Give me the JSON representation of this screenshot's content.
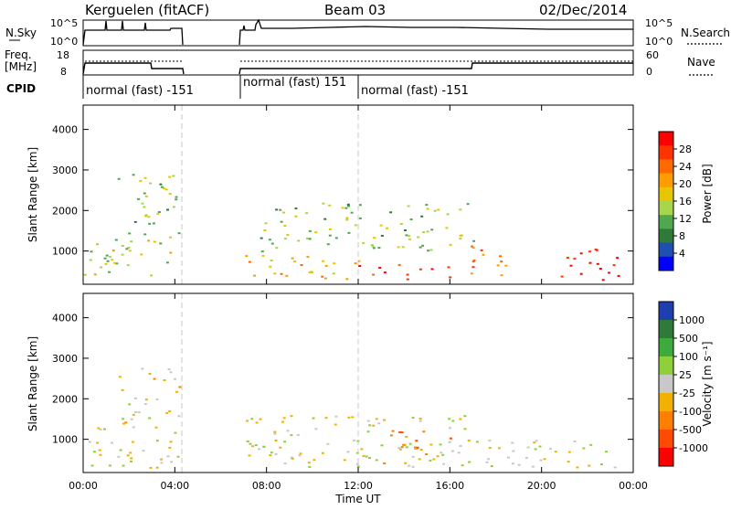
{
  "header": {
    "station": "Kerguelen (fitACF)",
    "beam": "Beam 03",
    "date": "02/Dec/2014"
  },
  "strip": {
    "nsky_label": "N.Sky",
    "nsky_ticks": [
      "10^5",
      "10^0"
    ],
    "nsearch_label": "N.Search",
    "nsearch_ticks": [
      "10^5",
      "10^0"
    ],
    "freq_label_1": "Freq.",
    "freq_label_2": "[MHz]",
    "freq_ticks": [
      "18",
      "8"
    ],
    "nave_label": "Nave",
    "nave_ticks": [
      "60",
      "0"
    ],
    "cpid_label": "CPID",
    "cpid_modes": [
      {
        "text": "normal (fast) -151",
        "start": "00:00",
        "end": "04:20"
      },
      {
        "text": "normal (fast) 151",
        "start": "07:00",
        "end": "12:00"
      },
      {
        "text": "normal (fast) -151",
        "start": "12:00",
        "end": "24:00"
      }
    ]
  },
  "axes": {
    "ylabel": "Slant Range [km]",
    "xlabel": "Time UT",
    "yticks": [
      "1000",
      "2000",
      "3000",
      "4000"
    ],
    "xticks": [
      "00:00",
      "04:00",
      "08:00",
      "12:00",
      "16:00",
      "20:00",
      "00:00"
    ]
  },
  "power_bar": {
    "label": "Power [dB]",
    "ticks": [
      "28",
      "24",
      "20",
      "16",
      "12",
      "8",
      "4"
    ],
    "colors": [
      "#ff0000",
      "#ff3300",
      "#ff6a00",
      "#ff9c00",
      "#e7c600",
      "#a8d64a",
      "#4fa84f",
      "#2f7a3a",
      "#1f4fb0",
      "#0000ff"
    ]
  },
  "velocity_bar": {
    "label": "Velocity [m s⁻¹]",
    "ticks": [
      "1000",
      "500",
      "100",
      "25",
      "-25",
      "-100",
      "-500",
      "-1000"
    ],
    "colors": [
      "#1f3fb0",
      "#2f7a3a",
      "#3cab3c",
      "#8fd03a",
      "#c8c8c8",
      "#f2b000",
      "#ff8000",
      "#ff4a00",
      "#ff0000"
    ]
  },
  "chart_data": {
    "type": "heatmap",
    "title": "Kerguelen (fitACF) Beam 03 02/Dec/2014",
    "xlabel": "Time UT",
    "ylabel": "Slant Range [km]",
    "xlim": [
      "00:00",
      "24:00"
    ],
    "ylim": [
      180,
      4600
    ],
    "grid": false,
    "data_gap": [
      "04:20",
      "07:00"
    ],
    "frequency_mhz": [
      {
        "start": "00:00",
        "end": "03:00",
        "value": 12
      },
      {
        "start": "03:00",
        "end": "04:20",
        "value": 10
      },
      {
        "start": "07:00",
        "end": "17:00",
        "value": 10
      },
      {
        "start": "17:00",
        "end": "24:00",
        "value": 12
      }
    ],
    "panels": [
      {
        "name": "Power [dB]",
        "colorbar_range": [
          0,
          30
        ],
        "regions": [
          {
            "t0": 0.0,
            "t1": 4.3,
            "r0": 300,
            "r1": 1300,
            "value": 14
          },
          {
            "t0": 1.5,
            "t1": 4.2,
            "r0": 1300,
            "r1": 3000,
            "value": 12
          },
          {
            "t0": 7.0,
            "t1": 12.0,
            "r0": 300,
            "r1": 1000,
            "value": 18
          },
          {
            "t0": 7.5,
            "t1": 17.0,
            "r0": 1000,
            "r1": 2200,
            "value": 12
          },
          {
            "t0": 12.0,
            "t1": 16.0,
            "r0": 300,
            "r1": 700,
            "value": 26
          },
          {
            "t0": 16.5,
            "t1": 18.5,
            "r0": 300,
            "r1": 1200,
            "value": 22
          },
          {
            "t0": 20.5,
            "t1": 23.5,
            "r0": 300,
            "r1": 1100,
            "value": 30
          }
        ]
      },
      {
        "name": "Velocity [m s-1]",
        "colorbar_range": [
          -1000,
          1000
        ],
        "regions": [
          {
            "t0": 0.0,
            "t1": 4.3,
            "r0": 300,
            "r1": 1300,
            "value": 0
          },
          {
            "t0": 1.5,
            "t1": 4.2,
            "r0": 1300,
            "r1": 2800,
            "value": -100
          },
          {
            "t0": 7.0,
            "t1": 17.0,
            "r0": 300,
            "r1": 1600,
            "value": 0
          },
          {
            "t0": 13.0,
            "t1": 16.0,
            "r0": 300,
            "r1": 1300,
            "value": -500
          },
          {
            "t0": 17.0,
            "t1": 23.5,
            "r0": 300,
            "r1": 1000,
            "value": 0
          }
        ]
      }
    ]
  }
}
